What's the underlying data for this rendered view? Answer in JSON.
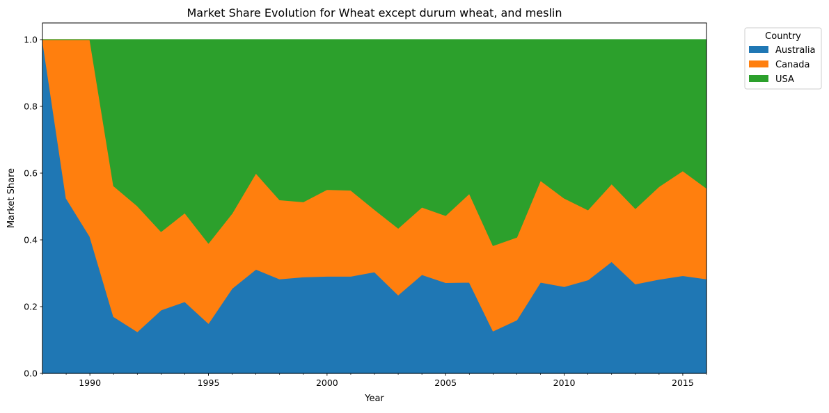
{
  "chart_data": {
    "type": "area",
    "stacked": true,
    "title": "Market Share Evolution for Wheat except durum wheat, and meslin",
    "xlabel": "Year",
    "ylabel": "Market Share",
    "xlim": [
      1988,
      2016
    ],
    "ylim": [
      0,
      1.05
    ],
    "x_ticks": [
      1990,
      1995,
      2000,
      2005,
      2010,
      2015
    ],
    "y_ticks": [
      0.0,
      0.2,
      0.4,
      0.6,
      0.8,
      1.0
    ],
    "y_tick_labels": [
      "0.0",
      "0.2",
      "0.4",
      "0.6",
      "0.8",
      "1.0"
    ],
    "grid": false,
    "legend": {
      "title": "Country",
      "placement": "outside-top-right"
    },
    "x": [
      1988,
      1989,
      1990,
      1991,
      1992,
      1993,
      1994,
      1995,
      1996,
      1997,
      1998,
      1999,
      2000,
      2001,
      2002,
      2003,
      2004,
      2005,
      2006,
      2007,
      2008,
      2009,
      2010,
      2011,
      2012,
      2013,
      2014,
      2015,
      2016
    ],
    "series": [
      {
        "name": "Australia",
        "color": "#1f77b4",
        "values": [
          1.0,
          0.525,
          0.41,
          0.17,
          0.125,
          0.19,
          0.215,
          0.15,
          0.255,
          0.312,
          0.283,
          0.289,
          0.291,
          0.291,
          0.304,
          0.235,
          0.296,
          0.272,
          0.273,
          0.127,
          0.16,
          0.273,
          0.26,
          0.28,
          0.335,
          0.268,
          0.282,
          0.293,
          0.283
        ]
      },
      {
        "name": "Canada",
        "color": "#ff7f0e",
        "values": [
          0.0,
          0.475,
          0.59,
          0.392,
          0.377,
          0.235,
          0.266,
          0.24,
          0.225,
          0.288,
          0.237,
          0.225,
          0.26,
          0.258,
          0.187,
          0.2,
          0.202,
          0.201,
          0.266,
          0.256,
          0.248,
          0.305,
          0.265,
          0.21,
          0.233,
          0.226,
          0.278,
          0.314,
          0.272
        ]
      },
      {
        "name": "USA",
        "color": "#2ca02c",
        "values": [
          0.0,
          0.0,
          0.0,
          0.438,
          0.498,
          0.575,
          0.519,
          0.61,
          0.52,
          0.4,
          0.48,
          0.486,
          0.449,
          0.451,
          0.509,
          0.565,
          0.502,
          0.527,
          0.461,
          0.617,
          0.592,
          0.422,
          0.475,
          0.51,
          0.432,
          0.506,
          0.44,
          0.393,
          0.445
        ]
      }
    ]
  }
}
